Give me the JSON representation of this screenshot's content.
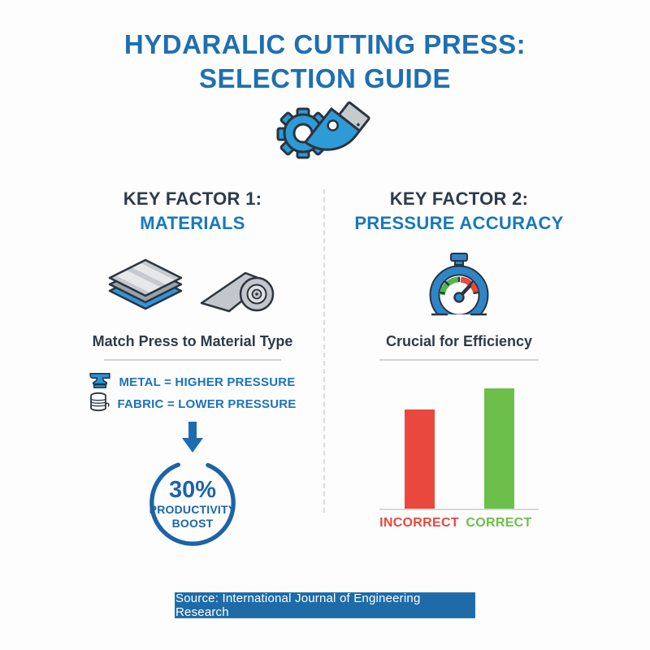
{
  "title": {
    "line1": "HYDARALIC CUTTING PRESS:",
    "line2": "SELECTION GUIDE"
  },
  "header_icon": "gear-cutter-icon",
  "left": {
    "heading_line1": "KEY FACTOR 1:",
    "heading_line2": "MATERIALS",
    "icons": [
      "stacked-sheets-icon",
      "fabric-roll-icon"
    ],
    "subtitle": "Match Press to Material Type",
    "legend": [
      {
        "icon": "anvil-icon",
        "label": "METAL = HIGHER PRESSURE"
      },
      {
        "icon": "thread-spool-icon",
        "label": "FABRIC = LOWER PRESSURE"
      }
    ],
    "arrow_icon": "down-arrow-icon",
    "badge": {
      "value": "30%",
      "label_line1": "PRODUCTIVITY",
      "label_line2": "BOOST"
    }
  },
  "right": {
    "heading_line1": "KEY FACTOR 2:",
    "heading_line2": "PRESSURE ACCURACY",
    "icon": "gauge-icon",
    "subtitle": "Crucial for Efficiency"
  },
  "chart_data": {
    "type": "bar",
    "categories": [
      "INCORRECT",
      "CORRECT"
    ],
    "values": [
      70,
      85
    ],
    "colors": [
      "#e8483e",
      "#6cbf4a"
    ],
    "title": "",
    "xlabel": "",
    "ylabel": "",
    "ylim": [
      0,
      100
    ],
    "grid": false,
    "legend_position": "none"
  },
  "footer": {
    "source": "Source: International Journal of Engineering Research"
  },
  "colors": {
    "title_blue": "#1e6fb2",
    "heading_dark": "#2d3b4d",
    "heading_blue": "#1878c0",
    "legend_blue": "#1b72bd",
    "badge_blue": "#1b64ab",
    "incorrect_red": "#e8483e",
    "correct_green": "#6cbf4a",
    "banner_blue": "#1e6ba8",
    "divider_gray": "#d9dce0",
    "icon_blue": "#2e9ad6",
    "icon_gray": "#c3c6ca",
    "outline_dark": "#2b3440"
  }
}
